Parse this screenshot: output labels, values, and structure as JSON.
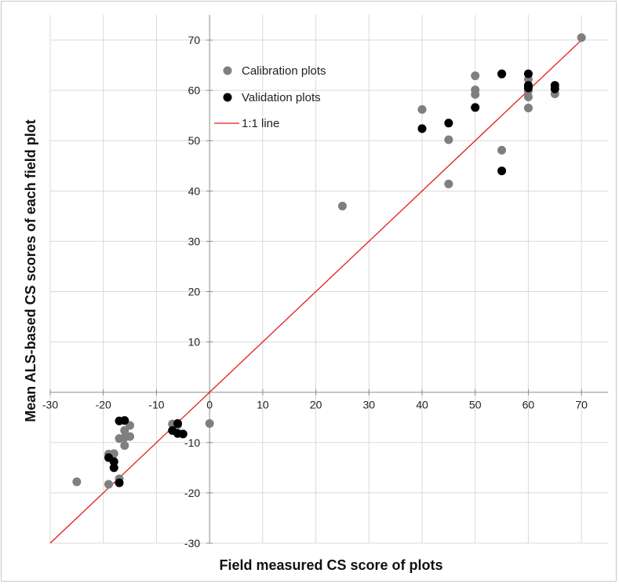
{
  "chart_data": {
    "type": "scatter",
    "xlabel": "Field measured CS score of plots",
    "ylabel": "Mean ALS-based CS scores of each field plot",
    "xlim": [
      -30,
      75
    ],
    "ylim": [
      -30,
      75
    ],
    "x_ticks": [
      -30,
      -20,
      -10,
      0,
      10,
      20,
      30,
      40,
      50,
      60,
      70
    ],
    "y_ticks": [
      -30,
      -20,
      -10,
      10,
      20,
      30,
      40,
      50,
      60,
      70
    ],
    "grid": true,
    "legend_position": "top-left",
    "series": [
      {
        "name": "Calibration plots",
        "color": "#7f7f7f",
        "points": [
          [
            -25,
            -17.8
          ],
          [
            -19,
            -18.3
          ],
          [
            -19,
            -12.3
          ],
          [
            -18,
            -12.2
          ],
          [
            -17,
            -17.2
          ],
          [
            -17,
            -9.2
          ],
          [
            -16,
            -7.6
          ],
          [
            -16,
            -10.6
          ],
          [
            -16,
            -9
          ],
          [
            -15,
            -6.6
          ],
          [
            -15,
            -8.8
          ],
          [
            -7,
            -6.3
          ],
          [
            -6,
            -6.5
          ],
          [
            0,
            -6.2
          ],
          [
            25,
            37
          ],
          [
            40,
            56.2
          ],
          [
            45,
            50.2
          ],
          [
            45,
            41.4
          ],
          [
            50,
            62.9
          ],
          [
            50,
            60.1
          ],
          [
            50,
            59.2
          ],
          [
            55,
            48.1
          ],
          [
            55,
            63.2
          ],
          [
            60,
            62.2
          ],
          [
            60,
            59.9
          ],
          [
            60,
            58.7
          ],
          [
            60,
            56.5
          ],
          [
            65,
            59.3
          ],
          [
            70,
            70.5
          ]
        ]
      },
      {
        "name": "Validation plots",
        "color": "#000000",
        "points": [
          [
            -17,
            -5.7
          ],
          [
            -16,
            -5.6
          ],
          [
            -19,
            -13
          ],
          [
            -18,
            -13.8
          ],
          [
            -18,
            -15
          ],
          [
            -17,
            -18
          ],
          [
            -7,
            -7.6
          ],
          [
            -6,
            -6.2
          ],
          [
            -6,
            -8.2
          ],
          [
            -5,
            -8.3
          ],
          [
            40,
            52.4
          ],
          [
            45,
            53.5
          ],
          [
            50,
            56.6
          ],
          [
            55,
            63.3
          ],
          [
            55,
            44
          ],
          [
            60,
            63.3
          ],
          [
            60,
            61
          ],
          [
            60,
            60.5
          ],
          [
            65,
            61
          ],
          [
            65,
            60.3
          ]
        ]
      }
    ],
    "reference_line": {
      "name": "1:1 line",
      "color": "#e41a1c",
      "from": [
        -30,
        -30
      ],
      "to": [
        70,
        70
      ]
    }
  }
}
